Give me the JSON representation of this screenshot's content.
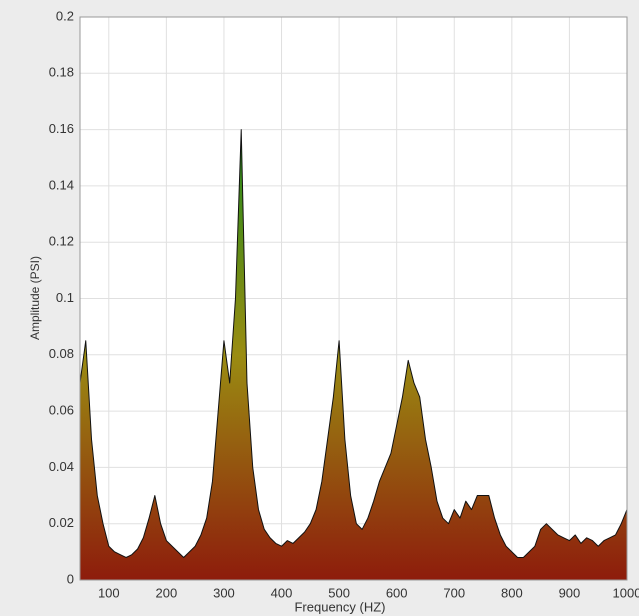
{
  "chart_data": {
    "type": "area",
    "x_label": "Frequency (HZ)",
    "y_label": "Amplitude (PSI)",
    "x": [
      50,
      60,
      70,
      80,
      90,
      100,
      110,
      120,
      130,
      140,
      150,
      160,
      170,
      180,
      190,
      200,
      210,
      220,
      230,
      240,
      250,
      260,
      270,
      280,
      290,
      300,
      310,
      320,
      330,
      340,
      350,
      360,
      370,
      380,
      390,
      400,
      410,
      420,
      430,
      440,
      450,
      460,
      470,
      480,
      490,
      500,
      510,
      520,
      530,
      540,
      550,
      560,
      570,
      580,
      590,
      600,
      610,
      620,
      630,
      640,
      650,
      660,
      670,
      680,
      690,
      700,
      710,
      720,
      730,
      740,
      750,
      760,
      770,
      780,
      790,
      800,
      810,
      820,
      830,
      840,
      850,
      860,
      870,
      880,
      890,
      900,
      910,
      920,
      930,
      940,
      950,
      960,
      970,
      980,
      990,
      1000
    ],
    "values": [
      0.07,
      0.085,
      0.05,
      0.03,
      0.02,
      0.012,
      0.01,
      0.009,
      0.008,
      0.009,
      0.011,
      0.015,
      0.022,
      0.03,
      0.02,
      0.014,
      0.012,
      0.01,
      0.008,
      0.01,
      0.012,
      0.016,
      0.022,
      0.035,
      0.06,
      0.085,
      0.07,
      0.1,
      0.16,
      0.07,
      0.04,
      0.025,
      0.018,
      0.015,
      0.013,
      0.012,
      0.014,
      0.013,
      0.015,
      0.017,
      0.02,
      0.025,
      0.035,
      0.05,
      0.065,
      0.085,
      0.05,
      0.03,
      0.02,
      0.018,
      0.022,
      0.028,
      0.035,
      0.04,
      0.045,
      0.055,
      0.065,
      0.078,
      0.07,
      0.065,
      0.05,
      0.04,
      0.028,
      0.022,
      0.02,
      0.025,
      0.022,
      0.028,
      0.025,
      0.03,
      0.03,
      0.03,
      0.022,
      0.016,
      0.012,
      0.01,
      0.008,
      0.008,
      0.01,
      0.012,
      0.018,
      0.02,
      0.018,
      0.016,
      0.015,
      0.014,
      0.016,
      0.013,
      0.015,
      0.014,
      0.012,
      0.014,
      0.015,
      0.016,
      0.02,
      0.025
    ],
    "colors": [
      "#1f8a1a",
      "#9a8c12",
      "#8e1c0c"
    ],
    "line_color": "#111111",
    "xlim": [
      50,
      1000
    ],
    "ylim": [
      0,
      0.2
    ],
    "xticks": [
      100,
      200,
      300,
      400,
      500,
      600,
      700,
      800,
      900,
      1000
    ],
    "yticks": [
      0,
      0.02,
      0.04,
      0.06,
      0.08,
      0.1,
      0.12,
      0.14,
      0.16,
      0.18,
      0.2
    ],
    "grid": true
  }
}
